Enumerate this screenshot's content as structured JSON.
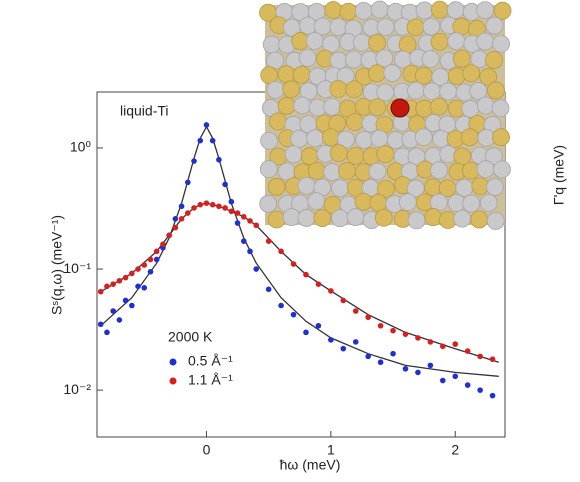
{
  "chart_data": {
    "type": "scatter",
    "annotation": "liquid-Ti",
    "x_label": "ħω (meV)",
    "y_label": "Sˢ(q,ω)  (meV⁻¹)",
    "inset_axis_label": "Γ'q (meV)",
    "legend_title": "2000 K",
    "log_y": true,
    "xlim": [
      -0.88,
      2.4
    ],
    "xticks": [
      0,
      1,
      2
    ],
    "ylim": [
      0.0041,
      2.9
    ],
    "yticks": [
      {
        "value": 1,
        "label": "10⁰"
      },
      {
        "value": 0.1,
        "label": "10⁻¹"
      },
      {
        "value": 0.01,
        "label": "10⁻²"
      }
    ],
    "x": [
      -0.85,
      -0.8,
      -0.75,
      -0.7,
      -0.65,
      -0.6,
      -0.55,
      -0.5,
      -0.45,
      -0.4,
      -0.35,
      -0.3,
      -0.25,
      -0.2,
      -0.15,
      -0.1,
      -0.05,
      0,
      0.05,
      0.1,
      0.15,
      0.2,
      0.25,
      0.3,
      0.35,
      0.4,
      0.5,
      0.6,
      0.7,
      0.8,
      0.9,
      1.0,
      1.1,
      1.2,
      1.3,
      1.4,
      1.5,
      1.6,
      1.7,
      1.8,
      1.9,
      2.0,
      2.1,
      2.2,
      2.3
    ],
    "series": [
      {
        "name": "0.5 Å⁻¹",
        "color": "#1f2fd6",
        "values": [
          0.035,
          0.03,
          0.045,
          0.038,
          0.055,
          0.05,
          0.072,
          0.07,
          0.095,
          0.12,
          0.15,
          0.19,
          0.26,
          0.33,
          0.52,
          0.78,
          1.15,
          1.55,
          1.15,
          0.8,
          0.5,
          0.36,
          0.24,
          0.17,
          0.14,
          0.1,
          0.068,
          0.05,
          0.042,
          0.03,
          0.034,
          0.026,
          0.022,
          0.025,
          0.019,
          0.017,
          0.02,
          0.015,
          0.014,
          0.016,
          0.012,
          0.013,
          0.011,
          0.01,
          0.009
        ]
      },
      {
        "name": "1.1 Å⁻¹",
        "color": "#d81e1e",
        "values": [
          0.065,
          0.072,
          0.075,
          0.08,
          0.085,
          0.092,
          0.1,
          0.108,
          0.12,
          0.14,
          0.16,
          0.19,
          0.22,
          0.26,
          0.29,
          0.32,
          0.34,
          0.35,
          0.34,
          0.33,
          0.32,
          0.3,
          0.29,
          0.27,
          0.25,
          0.23,
          0.17,
          0.14,
          0.11,
          0.09,
          0.075,
          0.066,
          0.055,
          0.045,
          0.04,
          0.034,
          0.031,
          0.029,
          0.027,
          0.025,
          0.023,
          0.024,
          0.021,
          0.019,
          0.018
        ]
      }
    ],
    "fit_x": [
      -0.85,
      -0.6,
      -0.4,
      -0.3,
      -0.2,
      -0.1,
      -0.05,
      0,
      0.05,
      0.1,
      0.2,
      0.3,
      0.4,
      0.6,
      0.8,
      1.0,
      1.3,
      1.6,
      2.0,
      2.35
    ],
    "fits": [
      {
        "color": "#333333",
        "values": [
          0.034,
          0.058,
          0.112,
          0.18,
          0.35,
          0.82,
          1.2,
          1.5,
          1.2,
          0.82,
          0.35,
          0.18,
          0.112,
          0.058,
          0.037,
          0.027,
          0.02,
          0.016,
          0.014,
          0.013
        ]
      },
      {
        "color": "#333333",
        "values": [
          0.065,
          0.092,
          0.14,
          0.19,
          0.26,
          0.32,
          0.34,
          0.35,
          0.34,
          0.33,
          0.3,
          0.27,
          0.23,
          0.14,
          0.09,
          0.066,
          0.042,
          0.03,
          0.022,
          0.017
        ]
      }
    ]
  }
}
